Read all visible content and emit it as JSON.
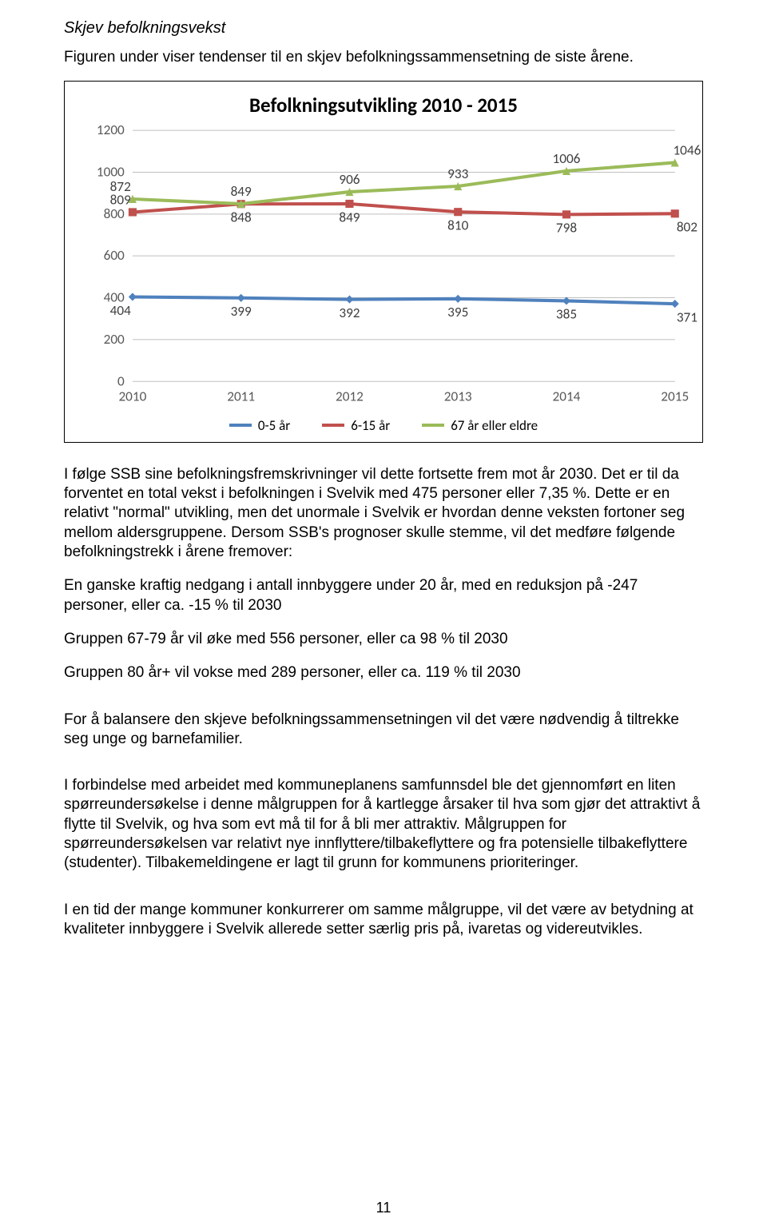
{
  "header": {
    "section_title": "Skjev befolkningsvekst",
    "intro": "Figuren under viser tendenser til en skjev befolkningssammensetning de siste årene."
  },
  "chart": {
    "type": "line",
    "title": "Befolkningsutvikling 2010 - 2015",
    "title_fontsize": 25,
    "font_family": "Calibri, Arial, sans-serif",
    "background_color": "#ffffff",
    "grid_color": "#bfbfbf",
    "y_axis": {
      "min": 0,
      "max": 1200,
      "step": 200
    },
    "y_ticks": [
      "0",
      "200",
      "400",
      "600",
      "800",
      "1000",
      "1200"
    ],
    "x_categories": [
      "2010",
      "2011",
      "2012",
      "2013",
      "2014",
      "2015"
    ],
    "series": [
      {
        "name": "0-5 år",
        "color": "#4f81bd",
        "marker": "diamond",
        "stroke_width": 4,
        "values": [
          404,
          399,
          392,
          395,
          385,
          371
        ]
      },
      {
        "name": "6-15 år",
        "color": "#c0504d",
        "marker": "square",
        "stroke_width": 4,
        "values": [
          809,
          848,
          849,
          810,
          798,
          802
        ]
      },
      {
        "name": "67 år eller eldre",
        "color": "#9bbb59",
        "marker": "triangle",
        "stroke_width": 4,
        "values": [
          872,
          849,
          906,
          933,
          1006,
          1046
        ]
      }
    ],
    "legend_labels": [
      "0-5 år",
      "6-15 år",
      "67 år eller eldre"
    ],
    "label_fontsize": 17,
    "tick_fontsize": 17,
    "border_color": "#000000"
  },
  "body": {
    "p1": "I følge SSB sine befolkningsfremskrivninger vil dette fortsette frem mot år 2030. Det er til da forventet en total vekst i befolkningen i Svelvik med 475 personer eller 7,35 %. Dette er en relativt \"normal\" utvikling, men det unormale i Svelvik er hvordan denne veksten fortoner seg mellom aldersgruppene. Dersom SSB's prognoser skulle stemme, vil det medføre følgende befolkningstrekk i årene fremover:",
    "p2": "En ganske kraftig nedgang i antall innbyggere under 20 år, med en reduksjon på -247 personer, eller ca. -15 % til 2030",
    "p3": "Gruppen 67-79 år vil øke med 556 personer, eller ca 98 % til 2030",
    "p4": "Gruppen 80 år+ vil vokse med 289 personer, eller ca. 119 % til 2030",
    "p5": "For å balansere den skjeve befolkningssammensetningen vil det være nødvendig å tiltrekke seg unge og barnefamilier.",
    "p6": "I forbindelse med arbeidet med kommuneplanens samfunnsdel ble det gjennomført en liten spørreundersøkelse i denne målgruppen for å kartlegge årsaker til hva som gjør det attraktivt å flytte til Svelvik, og hva som evt må til for å bli mer attraktiv. Målgruppen for spørreundersøkelsen var relativt nye innflyttere/tilbakeflyttere og fra potensielle tilbakeflyttere (studenter). Tilbakemeldingene er lagt til grunn for kommunens prioriteringer.",
    "p7": "I en tid der mange kommuner konkurrerer om samme målgruppe, vil det være av betydning at kvaliteter innbyggere i Svelvik allerede setter særlig pris på, ivaretas og videreutvikles."
  },
  "footer": {
    "page_number": "11"
  }
}
